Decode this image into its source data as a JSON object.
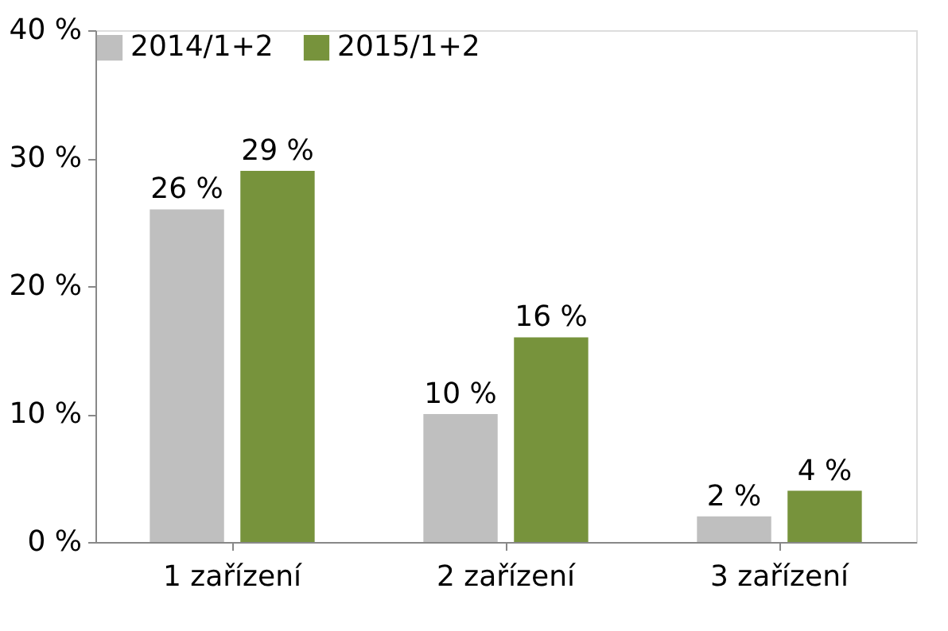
{
  "chart_data": {
    "type": "bar",
    "categories": [
      "1 zařízení",
      "2 zařízení",
      "3 zařízení"
    ],
    "series": [
      {
        "name": "2014/1+2",
        "color": "#bfbfbf",
        "values": [
          26,
          10,
          2
        ],
        "value_labels": [
          "26 %",
          "10 %",
          "2 %"
        ]
      },
      {
        "name": "2015/1+2",
        "color": "#77933c",
        "values": [
          29,
          16,
          4
        ],
        "value_labels": [
          "29 %",
          "16 %",
          "4 %"
        ]
      }
    ],
    "ylim": [
      0,
      40
    ],
    "yticks": [
      {
        "value": 0,
        "label": "0 %"
      },
      {
        "value": 10,
        "label": "10 %"
      },
      {
        "value": 20,
        "label": "20 %"
      },
      {
        "value": 30,
        "label": "30 %"
      },
      {
        "value": 40,
        "label": "40 %"
      }
    ],
    "grid": false,
    "legend": "top"
  }
}
